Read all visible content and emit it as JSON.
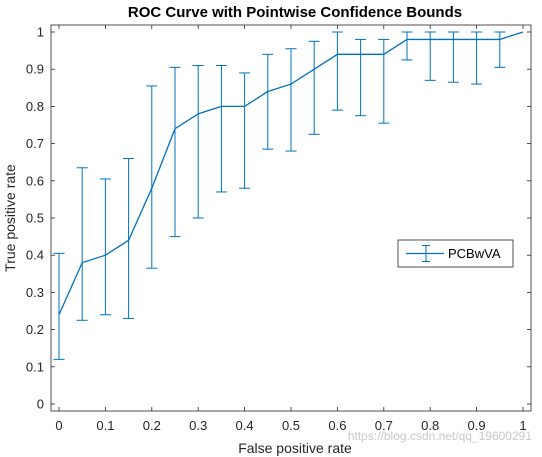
{
  "chart_data": {
    "type": "line",
    "title": "ROC Curve with Pointwise Confidence Bounds",
    "xlabel": "False positive rate",
    "ylabel": "True positive rate",
    "xlim": [
      0,
      1
    ],
    "ylim": [
      0,
      1
    ],
    "xticks": [
      "0",
      "0.1",
      "0.2",
      "0.3",
      "0.4",
      "0.5",
      "0.6",
      "0.7",
      "0.8",
      "0.9",
      "1"
    ],
    "yticks": [
      "0",
      "0.1",
      "0.2",
      "0.3",
      "0.4",
      "0.5",
      "0.6",
      "0.7",
      "0.8",
      "0.9",
      "1"
    ],
    "grid": false,
    "legend_position": "right",
    "series": [
      {
        "name": "PCBwVA",
        "color": "#0072BD",
        "points": [
          {
            "x": 0.0,
            "y": 0.24,
            "lo": 0.12,
            "hi": 0.405
          },
          {
            "x": 0.05,
            "y": 0.38,
            "lo": 0.225,
            "hi": 0.635
          },
          {
            "x": 0.1,
            "y": 0.4,
            "lo": 0.24,
            "hi": 0.605
          },
          {
            "x": 0.15,
            "y": 0.44,
            "lo": 0.23,
            "hi": 0.66
          },
          {
            "x": 0.2,
            "y": 0.58,
            "lo": 0.365,
            "hi": 0.855
          },
          {
            "x": 0.25,
            "y": 0.74,
            "lo": 0.45,
            "hi": 0.905
          },
          {
            "x": 0.3,
            "y": 0.78,
            "lo": 0.5,
            "hi": 0.91
          },
          {
            "x": 0.35,
            "y": 0.8,
            "lo": 0.57,
            "hi": 0.91
          },
          {
            "x": 0.4,
            "y": 0.8,
            "lo": 0.58,
            "hi": 0.89
          },
          {
            "x": 0.45,
            "y": 0.84,
            "lo": 0.685,
            "hi": 0.94
          },
          {
            "x": 0.5,
            "y": 0.86,
            "lo": 0.68,
            "hi": 0.955
          },
          {
            "x": 0.55,
            "y": 0.9,
            "lo": 0.725,
            "hi": 0.975
          },
          {
            "x": 0.6,
            "y": 0.94,
            "lo": 0.79,
            "hi": 1.0
          },
          {
            "x": 0.65,
            "y": 0.94,
            "lo": 0.775,
            "hi": 0.98
          },
          {
            "x": 0.7,
            "y": 0.94,
            "lo": 0.755,
            "hi": 0.98
          },
          {
            "x": 0.75,
            "y": 0.98,
            "lo": 0.925,
            "hi": 1.0
          },
          {
            "x": 0.8,
            "y": 0.98,
            "lo": 0.87,
            "hi": 1.0
          },
          {
            "x": 0.85,
            "y": 0.98,
            "lo": 0.865,
            "hi": 1.0
          },
          {
            "x": 0.9,
            "y": 0.98,
            "lo": 0.86,
            "hi": 1.0
          },
          {
            "x": 0.95,
            "y": 0.98,
            "lo": 0.905,
            "hi": 1.0
          },
          {
            "x": 1.0,
            "y": 1.0
          }
        ]
      }
    ]
  },
  "watermark": "https://blog.csdn.net/qq_19600291"
}
